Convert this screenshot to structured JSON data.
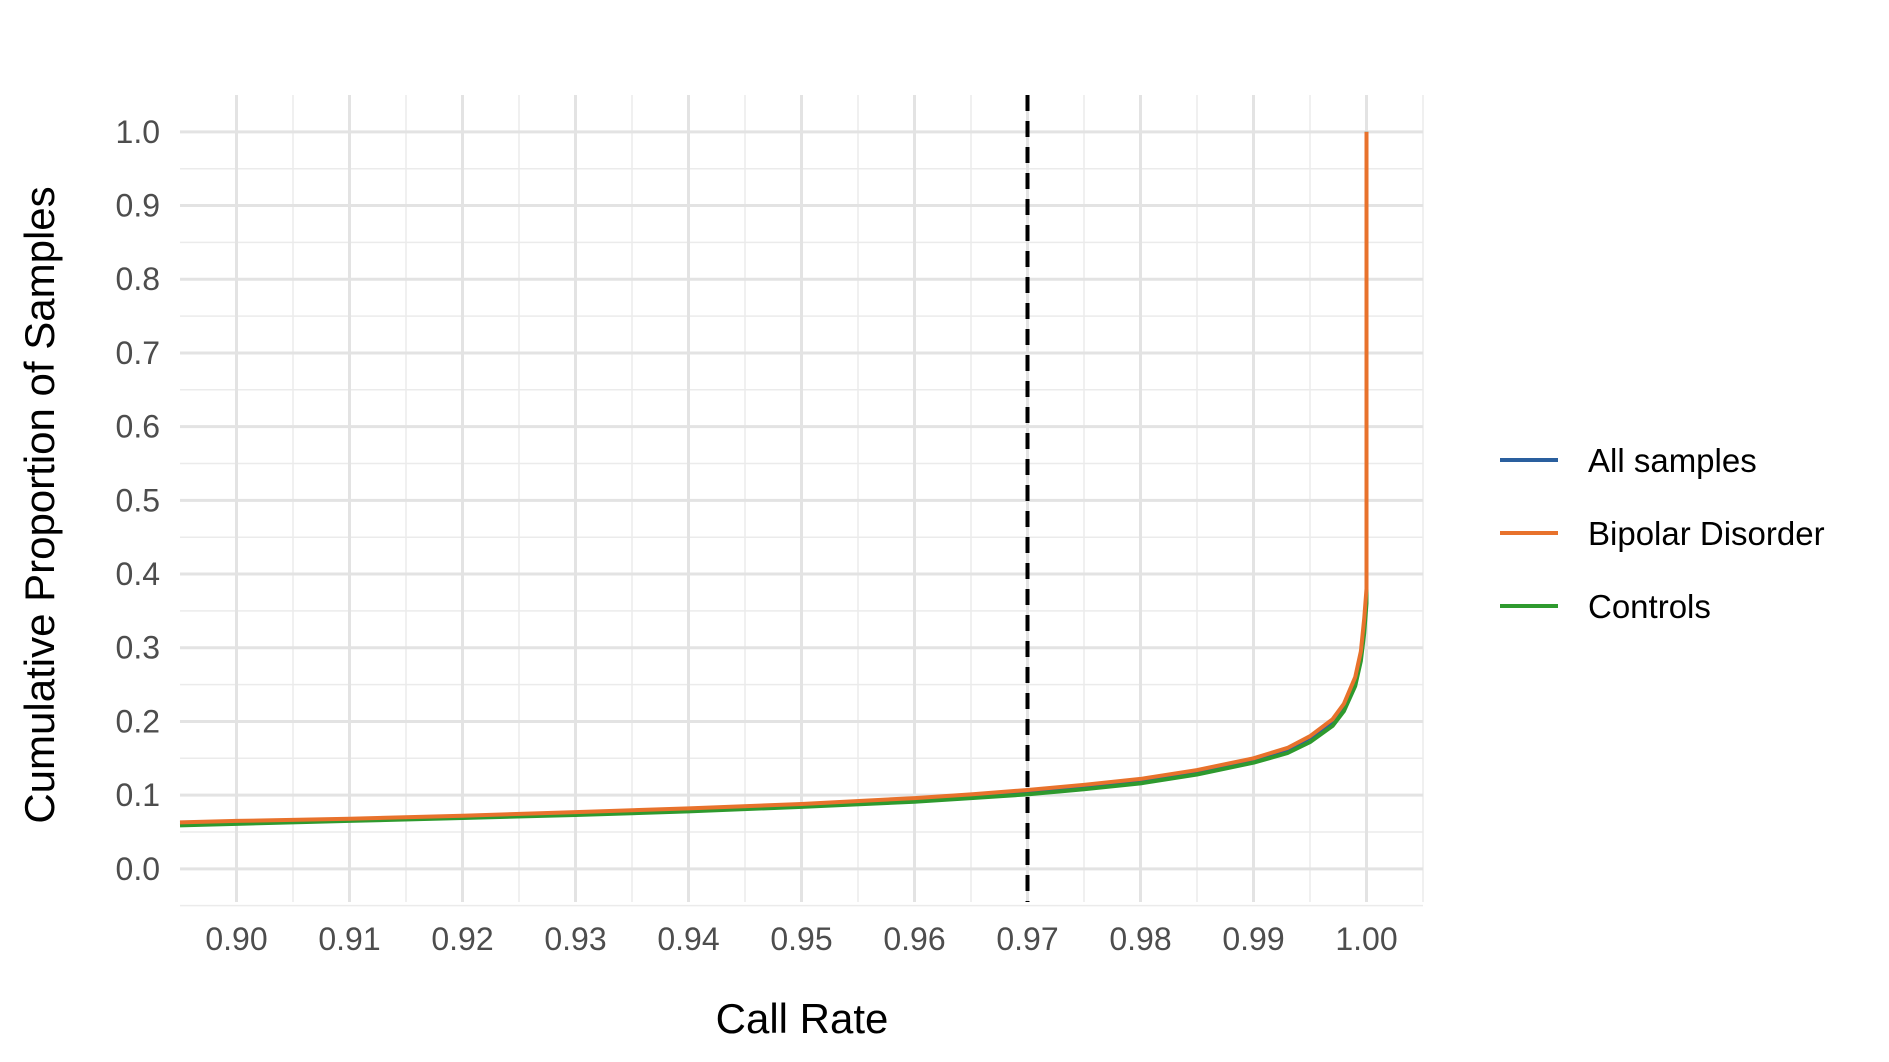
{
  "chart_data": {
    "type": "line",
    "title": "",
    "xlabel": "Call Rate",
    "ylabel": "Cumulative Proportion of Samples",
    "xlim": [
      0.895,
      1.005
    ],
    "ylim": [
      -0.045,
      1.05
    ],
    "x_ticks": [
      0.9,
      0.91,
      0.92,
      0.93,
      0.94,
      0.95,
      0.96,
      0.97,
      0.98,
      0.99,
      1.0
    ],
    "x_tick_labels": [
      "0.90",
      "0.91",
      "0.92",
      "0.93",
      "0.94",
      "0.95",
      "0.96",
      "0.97",
      "0.98",
      "0.99",
      "1.00"
    ],
    "y_ticks": [
      0.0,
      0.1,
      0.2,
      0.3,
      0.4,
      0.5,
      0.6,
      0.7,
      0.8,
      0.9,
      1.0
    ],
    "y_tick_labels": [
      "0.0",
      "0.1",
      "0.2",
      "0.3",
      "0.4",
      "0.5",
      "0.6",
      "0.7",
      "0.8",
      "0.9",
      "1.0"
    ],
    "grid": true,
    "legend_position": "right",
    "reference_line": {
      "axis": "x",
      "value": 0.97,
      "style": "dashed",
      "color": "#000000"
    },
    "series": [
      {
        "name": "All samples",
        "color": "#2a5f9e",
        "x": [
          0.895,
          0.9,
          0.91,
          0.92,
          0.93,
          0.94,
          0.95,
          0.96,
          0.965,
          0.97,
          0.975,
          0.98,
          0.985,
          0.99,
          0.993,
          0.995,
          0.997,
          0.998,
          0.999,
          0.9995,
          0.9998,
          1.0,
          1.0
        ],
        "y": [
          0.062,
          0.063,
          0.067,
          0.071,
          0.075,
          0.08,
          0.086,
          0.094,
          0.099,
          0.105,
          0.112,
          0.12,
          0.132,
          0.148,
          0.162,
          0.178,
          0.2,
          0.22,
          0.255,
          0.29,
          0.33,
          0.37,
          1.0
        ]
      },
      {
        "name": "Bipolar Disorder",
        "color": "#e8722c",
        "x": [
          0.895,
          0.9,
          0.91,
          0.92,
          0.93,
          0.94,
          0.95,
          0.96,
          0.965,
          0.97,
          0.975,
          0.98,
          0.985,
          0.99,
          0.993,
          0.995,
          0.997,
          0.998,
          0.999,
          0.9995,
          0.9998,
          1.0,
          1.0
        ],
        "y": [
          0.063,
          0.065,
          0.068,
          0.072,
          0.077,
          0.082,
          0.088,
          0.096,
          0.101,
          0.107,
          0.114,
          0.122,
          0.134,
          0.15,
          0.164,
          0.18,
          0.203,
          0.224,
          0.26,
          0.295,
          0.34,
          0.38,
          1.0
        ]
      },
      {
        "name": "Controls",
        "color": "#2e9a2e",
        "x": [
          0.895,
          0.9,
          0.91,
          0.92,
          0.93,
          0.94,
          0.95,
          0.96,
          0.965,
          0.97,
          0.975,
          0.98,
          0.985,
          0.99,
          0.993,
          0.995,
          0.997,
          0.998,
          0.999,
          0.9995,
          0.9998,
          1.0,
          1.0
        ],
        "y": [
          0.059,
          0.061,
          0.065,
          0.069,
          0.073,
          0.078,
          0.084,
          0.091,
          0.096,
          0.101,
          0.108,
          0.116,
          0.128,
          0.144,
          0.157,
          0.172,
          0.194,
          0.214,
          0.248,
          0.282,
          0.32,
          0.36,
          1.0
        ]
      }
    ]
  }
}
